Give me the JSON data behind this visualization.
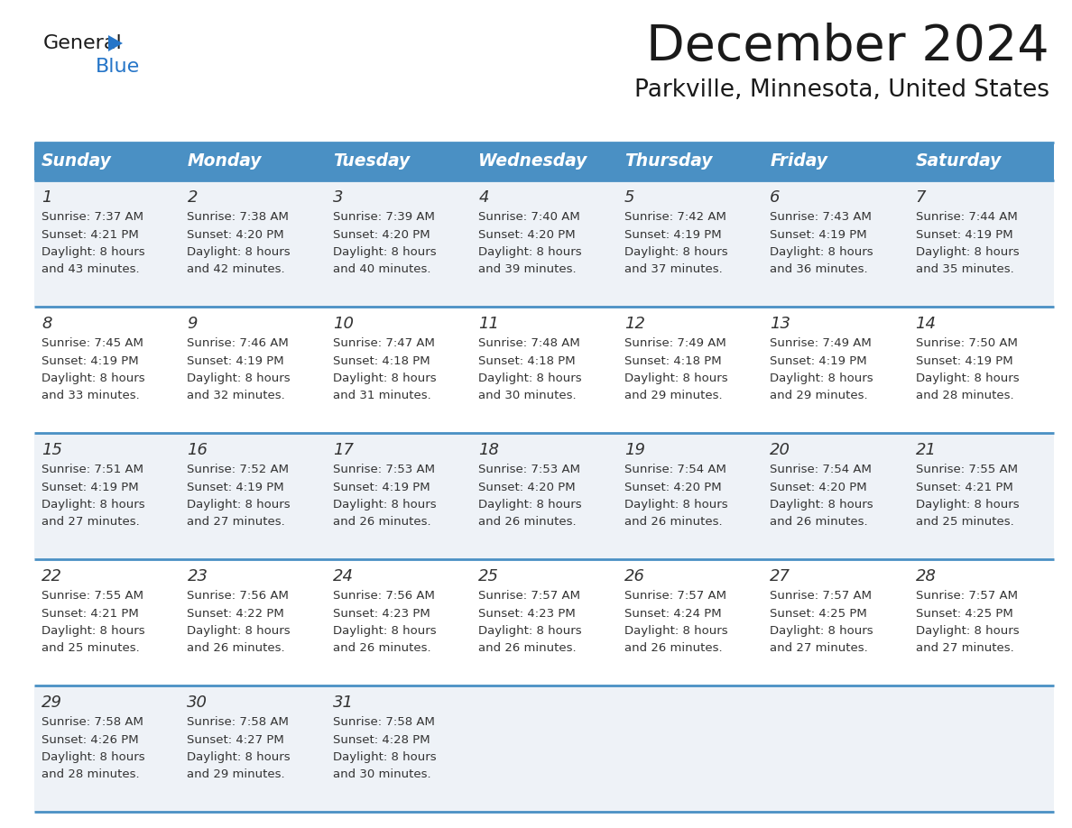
{
  "title": "December 2024",
  "subtitle": "Parkville, Minnesota, United States",
  "header_bg_color": "#4a90c4",
  "header_text_color": "#ffffff",
  "days_of_week": [
    "Sunday",
    "Monday",
    "Tuesday",
    "Wednesday",
    "Thursday",
    "Friday",
    "Saturday"
  ],
  "row_bg_even": "#eef2f7",
  "row_bg_odd": "#ffffff",
  "cell_text_color": "#333333",
  "border_color": "#4a90c4",
  "weeks": [
    [
      {
        "day": 1,
        "sunrise": "7:37 AM",
        "sunset": "4:21 PM",
        "daylight": "8 hours and 43 minutes."
      },
      {
        "day": 2,
        "sunrise": "7:38 AM",
        "sunset": "4:20 PM",
        "daylight": "8 hours and 42 minutes."
      },
      {
        "day": 3,
        "sunrise": "7:39 AM",
        "sunset": "4:20 PM",
        "daylight": "8 hours and 40 minutes."
      },
      {
        "day": 4,
        "sunrise": "7:40 AM",
        "sunset": "4:20 PM",
        "daylight": "8 hours and 39 minutes."
      },
      {
        "day": 5,
        "sunrise": "7:42 AM",
        "sunset": "4:19 PM",
        "daylight": "8 hours and 37 minutes."
      },
      {
        "day": 6,
        "sunrise": "7:43 AM",
        "sunset": "4:19 PM",
        "daylight": "8 hours and 36 minutes."
      },
      {
        "day": 7,
        "sunrise": "7:44 AM",
        "sunset": "4:19 PM",
        "daylight": "8 hours and 35 minutes."
      }
    ],
    [
      {
        "day": 8,
        "sunrise": "7:45 AM",
        "sunset": "4:19 PM",
        "daylight": "8 hours and 33 minutes."
      },
      {
        "day": 9,
        "sunrise": "7:46 AM",
        "sunset": "4:19 PM",
        "daylight": "8 hours and 32 minutes."
      },
      {
        "day": 10,
        "sunrise": "7:47 AM",
        "sunset": "4:18 PM",
        "daylight": "8 hours and 31 minutes."
      },
      {
        "day": 11,
        "sunrise": "7:48 AM",
        "sunset": "4:18 PM",
        "daylight": "8 hours and 30 minutes."
      },
      {
        "day": 12,
        "sunrise": "7:49 AM",
        "sunset": "4:18 PM",
        "daylight": "8 hours and 29 minutes."
      },
      {
        "day": 13,
        "sunrise": "7:49 AM",
        "sunset": "4:19 PM",
        "daylight": "8 hours and 29 minutes."
      },
      {
        "day": 14,
        "sunrise": "7:50 AM",
        "sunset": "4:19 PM",
        "daylight": "8 hours and 28 minutes."
      }
    ],
    [
      {
        "day": 15,
        "sunrise": "7:51 AM",
        "sunset": "4:19 PM",
        "daylight": "8 hours and 27 minutes."
      },
      {
        "day": 16,
        "sunrise": "7:52 AM",
        "sunset": "4:19 PM",
        "daylight": "8 hours and 27 minutes."
      },
      {
        "day": 17,
        "sunrise": "7:53 AM",
        "sunset": "4:19 PM",
        "daylight": "8 hours and 26 minutes."
      },
      {
        "day": 18,
        "sunrise": "7:53 AM",
        "sunset": "4:20 PM",
        "daylight": "8 hours and 26 minutes."
      },
      {
        "day": 19,
        "sunrise": "7:54 AM",
        "sunset": "4:20 PM",
        "daylight": "8 hours and 26 minutes."
      },
      {
        "day": 20,
        "sunrise": "7:54 AM",
        "sunset": "4:20 PM",
        "daylight": "8 hours and 26 minutes."
      },
      {
        "day": 21,
        "sunrise": "7:55 AM",
        "sunset": "4:21 PM",
        "daylight": "8 hours and 25 minutes."
      }
    ],
    [
      {
        "day": 22,
        "sunrise": "7:55 AM",
        "sunset": "4:21 PM",
        "daylight": "8 hours and 25 minutes."
      },
      {
        "day": 23,
        "sunrise": "7:56 AM",
        "sunset": "4:22 PM",
        "daylight": "8 hours and 26 minutes."
      },
      {
        "day": 24,
        "sunrise": "7:56 AM",
        "sunset": "4:23 PM",
        "daylight": "8 hours and 26 minutes."
      },
      {
        "day": 25,
        "sunrise": "7:57 AM",
        "sunset": "4:23 PM",
        "daylight": "8 hours and 26 minutes."
      },
      {
        "day": 26,
        "sunrise": "7:57 AM",
        "sunset": "4:24 PM",
        "daylight": "8 hours and 26 minutes."
      },
      {
        "day": 27,
        "sunrise": "7:57 AM",
        "sunset": "4:25 PM",
        "daylight": "8 hours and 27 minutes."
      },
      {
        "day": 28,
        "sunrise": "7:57 AM",
        "sunset": "4:25 PM",
        "daylight": "8 hours and 27 minutes."
      }
    ],
    [
      {
        "day": 29,
        "sunrise": "7:58 AM",
        "sunset": "4:26 PM",
        "daylight": "8 hours and 28 minutes."
      },
      {
        "day": 30,
        "sunrise": "7:58 AM",
        "sunset": "4:27 PM",
        "daylight": "8 hours and 29 minutes."
      },
      {
        "day": 31,
        "sunrise": "7:58 AM",
        "sunset": "4:28 PM",
        "daylight": "8 hours and 30 minutes."
      },
      null,
      null,
      null,
      null
    ]
  ],
  "logo_general_color": "#1a1a1a",
  "logo_blue_color": "#2575c8",
  "logo_triangle_color": "#2575c8",
  "fig_width": 11.88,
  "fig_height": 9.18,
  "dpi": 100
}
